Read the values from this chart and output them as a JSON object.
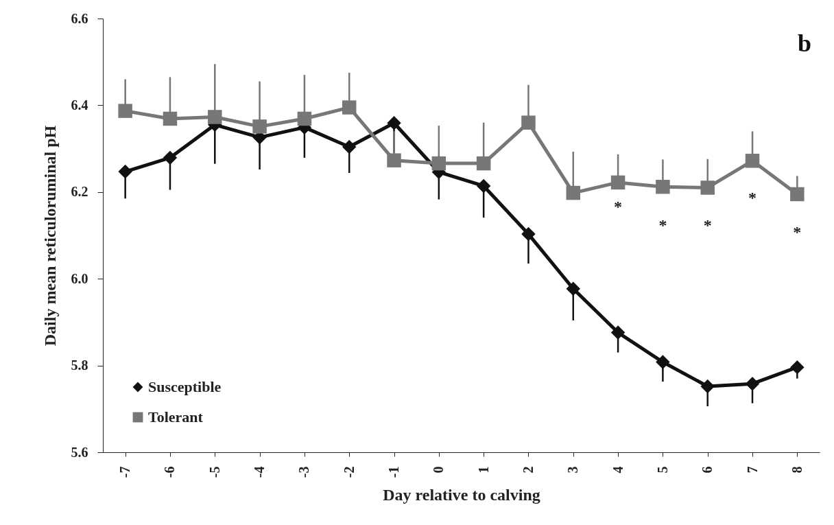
{
  "chart_data": {
    "type": "line",
    "xlabel": "Day relative to calving",
    "ylabel": "Daily mean reticuloruminal pH",
    "categories": [
      "-7",
      "-6",
      "-5",
      "-4",
      "-3",
      "-2",
      "-1",
      "0",
      "1",
      "2",
      "3",
      "4",
      "5",
      "6",
      "7",
      "8"
    ],
    "series": [
      {
        "name": "Susceptible",
        "color": "#111111",
        "marker": "diamond",
        "values": [
          6.247,
          6.279,
          6.355,
          6.326,
          6.349,
          6.304,
          6.359,
          6.246,
          6.214,
          6.103,
          5.977,
          5.876,
          5.808,
          5.752,
          5.758,
          5.796
        ],
        "errors": [
          [
            6.185,
            6.247
          ],
          [
            6.205,
            6.279
          ],
          [
            6.265,
            6.355
          ],
          [
            6.252,
            6.326
          ],
          [
            6.279,
            6.349
          ],
          [
            6.244,
            6.304
          ],
          [
            6.29,
            6.359
          ],
          [
            6.183,
            6.246
          ],
          [
            6.141,
            6.214
          ],
          [
            6.035,
            6.103
          ],
          [
            5.904,
            5.977
          ],
          [
            5.83,
            5.876
          ],
          [
            5.763,
            5.808
          ],
          [
            5.706,
            5.752
          ],
          [
            5.713,
            5.758
          ],
          [
            5.77,
            5.796
          ]
        ]
      },
      {
        "name": "Tolerant",
        "color": "#777777",
        "marker": "square",
        "values": [
          6.387,
          6.369,
          6.373,
          6.351,
          6.369,
          6.395,
          6.273,
          6.266,
          6.266,
          6.36,
          6.198,
          6.222,
          6.212,
          6.21,
          6.272,
          6.195
        ],
        "errors": [
          [
            6.387,
            6.46
          ],
          [
            6.369,
            6.465
          ],
          [
            6.373,
            6.495
          ],
          [
            6.351,
            6.455
          ],
          [
            6.369,
            6.47
          ],
          [
            6.395,
            6.475
          ],
          [
            6.273,
            6.34
          ],
          [
            6.266,
            6.353
          ],
          [
            6.266,
            6.36
          ],
          [
            6.36,
            6.447
          ],
          [
            6.198,
            6.293
          ],
          [
            6.222,
            6.287
          ],
          [
            6.212,
            6.275
          ],
          [
            6.21,
            6.276
          ],
          [
            6.272,
            6.34
          ],
          [
            6.195,
            6.237
          ]
        ]
      }
    ],
    "ylim": [
      5.6,
      6.6
    ],
    "yticks": [
      5.6,
      5.8,
      {
        "value": 6,
        "label": "6.0"
      },
      6.2,
      6.4,
      6.6
    ],
    "grid": false,
    "legend": "bottom left",
    "line_style": "solid",
    "annotations": [
      "b",
      "*",
      "*",
      "*",
      "*",
      "*"
    ]
  }
}
